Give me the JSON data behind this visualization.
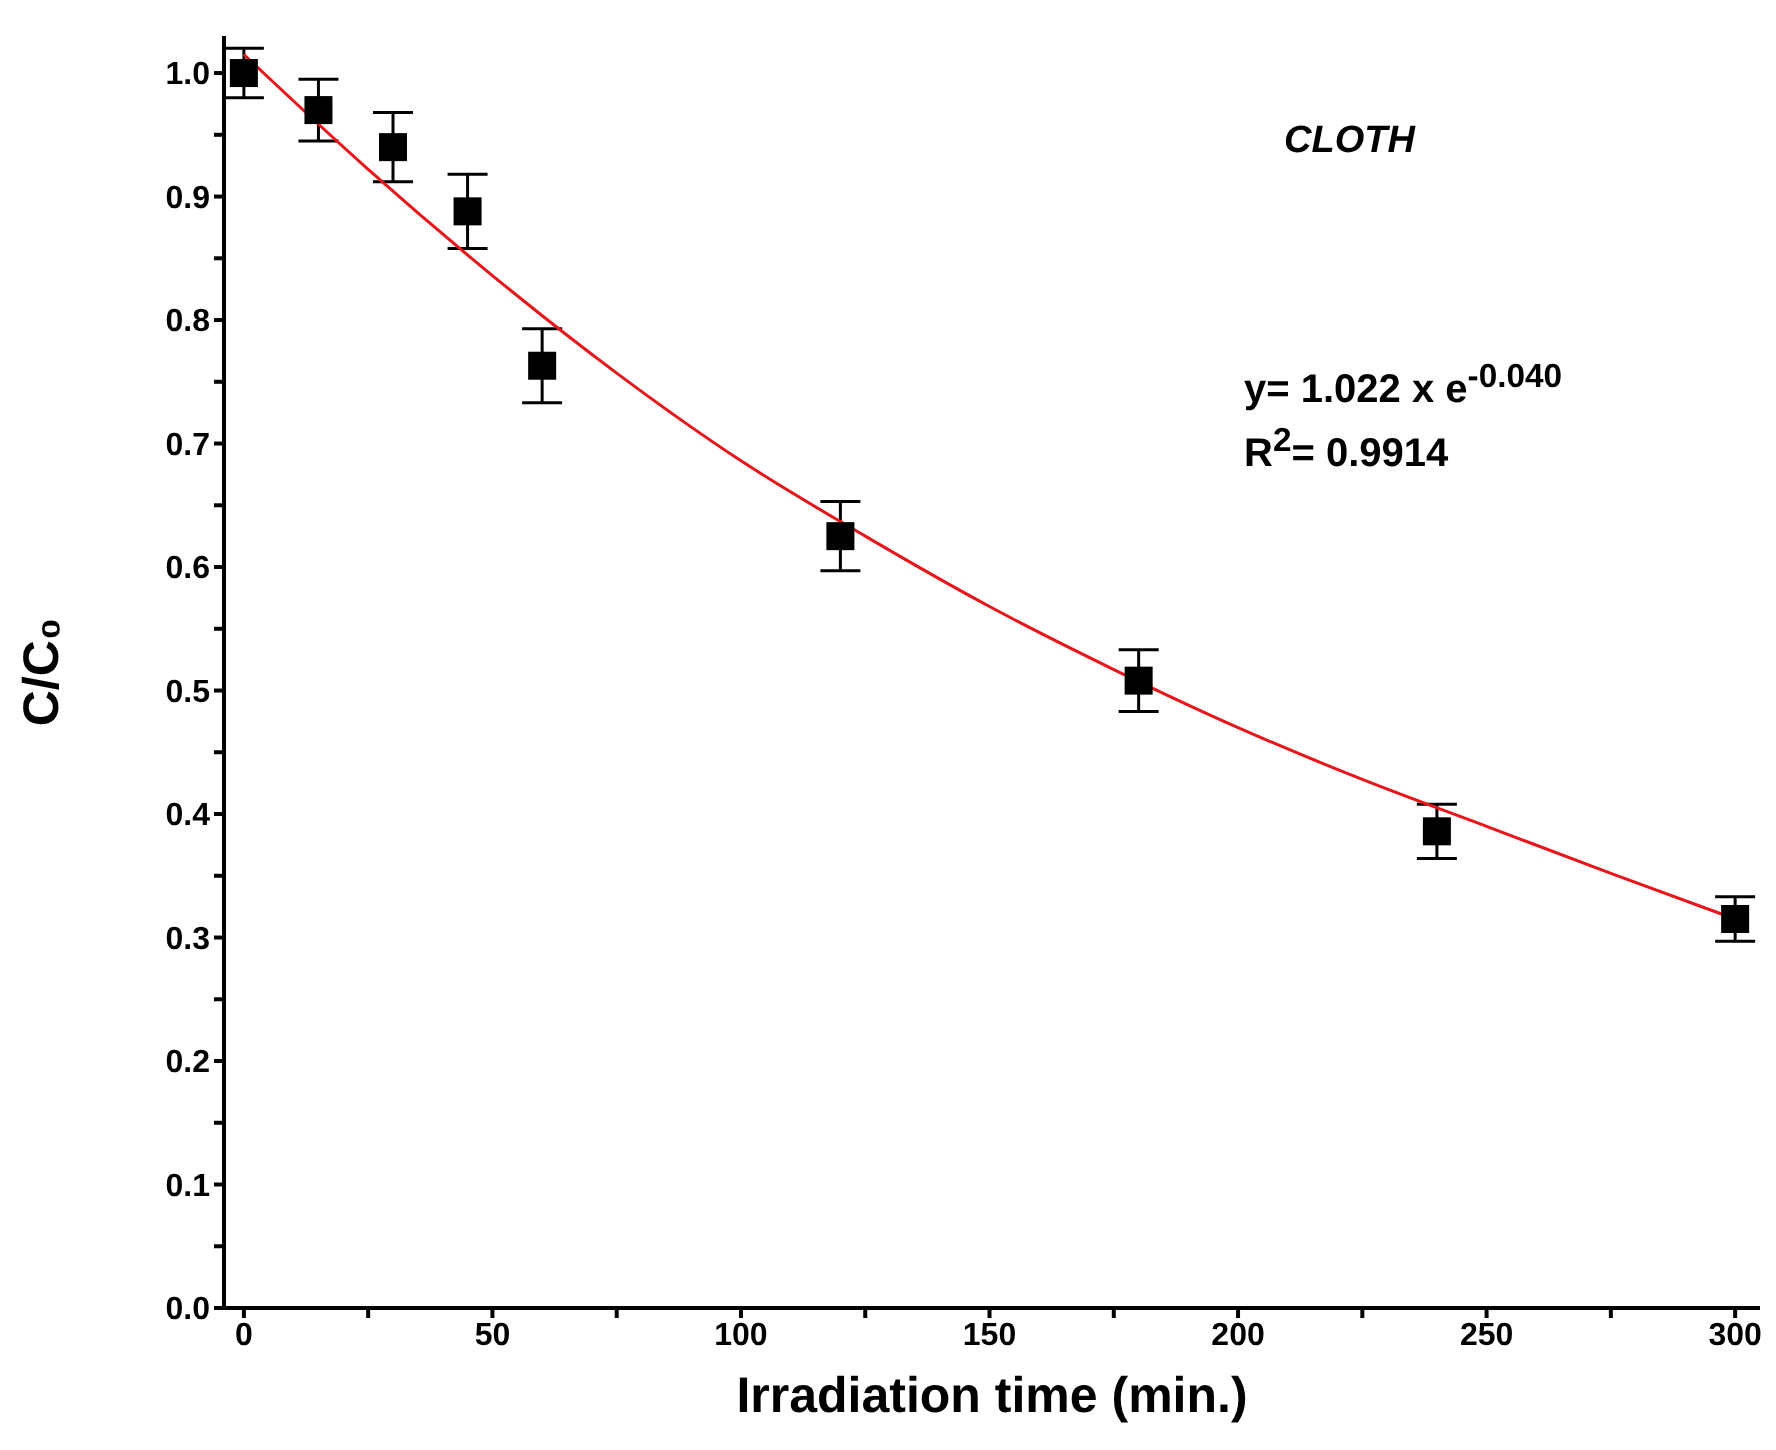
{
  "chart_data": {
    "type": "scatter",
    "xlabel": "Irradiation time (min.)",
    "ylabel": "C/C₀",
    "xlim": [
      -4,
      305
    ],
    "xticks": [
      0,
      {
        "value": 25,
        "label": null
      },
      50,
      {
        "value": 75,
        "label": null
      },
      100,
      {
        "value": 125,
        "label": null
      },
      150,
      {
        "value": 175,
        "label": null
      },
      200,
      {
        "value": 225,
        "label": null
      },
      250,
      {
        "value": 275,
        "label": null
      },
      300
    ],
    "ylim": [
      0,
      1.03
    ],
    "yticks": [
      "0.0",
      {
        "value": 0.05,
        "label": null
      },
      0.1,
      {
        "value": 0.15,
        "label": null
      },
      0.2,
      {
        "value": 0.25,
        "label": null
      },
      0.3,
      {
        "value": 0.35,
        "label": null
      },
      0.4,
      {
        "value": 0.45,
        "label": null
      },
      0.5,
      {
        "value": 0.55,
        "label": null
      },
      0.6,
      {
        "value": 0.65,
        "label": null
      },
      0.7,
      {
        "value": 0.75,
        "label": null
      },
      0.8,
      {
        "value": 0.85,
        "label": null
      },
      0.9,
      {
        "value": 0.95,
        "label": null
      },
      {
        "value": 1,
        "label": "1.0"
      }
    ],
    "marker": "square",
    "series": [
      {
        "color": "#000000",
        "x": [
          0,
          15,
          30,
          45,
          60,
          120,
          180,
          240,
          300
        ],
        "values": [
          1.0,
          0.97,
          0.94,
          0.888,
          0.763,
          0.625,
          0.508,
          0.386,
          0.315
        ],
        "errors": [
          0.02,
          0.025,
          0.028,
          0.03,
          0.03,
          0.028,
          0.025,
          0.022,
          0.018
        ]
      },
      {
        "type": "line",
        "marker": "none",
        "color": "#e8151b",
        "line_style": "solid",
        "x": [
          0,
          25,
          50,
          75,
          100,
          125,
          150,
          175,
          200,
          225,
          250,
          275,
          300
        ],
        "values": [
          1.015,
          0.922,
          0.836,
          0.757,
          0.686,
          0.625,
          0.568,
          0.517,
          0.47,
          0.428,
          0.39,
          0.352,
          0.315
        ]
      }
    ],
    "annotations": [
      "CLOTH",
      "y= 1.022 x e$^{-0.040}$",
      "R$^{2}$= 0.9914"
    ]
  }
}
